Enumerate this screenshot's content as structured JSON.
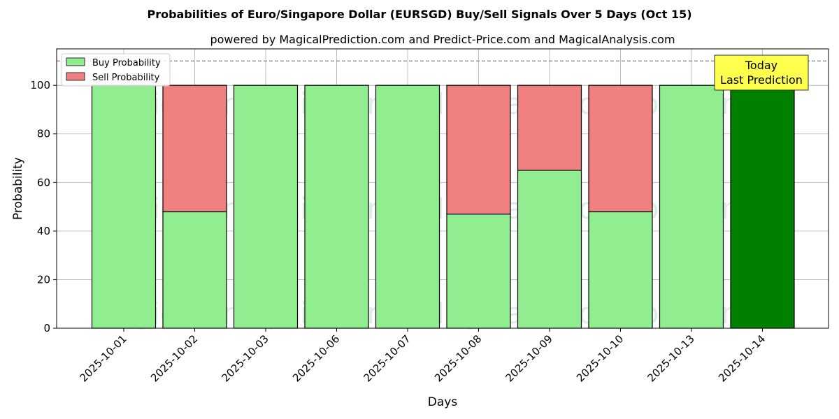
{
  "chart_data": {
    "type": "bar",
    "stacked": true,
    "title": "Probabilities of Euro/Singapore Dollar (EURSGD) Buy/Sell Signals Over 5 Days (Oct 15)",
    "subtitle": "powered by MagicalPrediction.com and Predict-Price.com and MagicalAnalysis.com",
    "xlabel": "Days",
    "ylabel": "Probability",
    "ylim": [
      0,
      115
    ],
    "yticks": [
      0,
      20,
      40,
      60,
      80,
      100
    ],
    "categories": [
      "2025-10-01",
      "2025-10-02",
      "2025-10-03",
      "2025-10-06",
      "2025-10-07",
      "2025-10-08",
      "2025-10-09",
      "2025-10-10",
      "2025-10-13",
      "2025-10-14"
    ],
    "series": [
      {
        "name": "Buy Probability",
        "color": "#90ee90",
        "values": [
          100,
          48,
          100,
          100,
          100,
          47,
          65,
          48,
          100,
          100
        ]
      },
      {
        "name": "Sell Probability",
        "color": "#f08080",
        "values": [
          0,
          52,
          0,
          0,
          0,
          53,
          35,
          52,
          0,
          0
        ]
      }
    ],
    "highlight": {
      "category_index": 9,
      "color": "#008000"
    },
    "reference_line": {
      "y": 110,
      "style": "dashed",
      "color": "#808080"
    },
    "annotation": {
      "lines": [
        "Today",
        "Last Prediction"
      ],
      "background": "#ffff4d"
    },
    "legend_placement": "top-left",
    "grid": true,
    "watermarks": [
      "MagicalAnalysis.com",
      "MagicalPrediction.com",
      "MagicalAnalysis.com",
      "MagicalPrediction.com",
      "MagicalAnalysis.com",
      "MagicalPrediction.com"
    ]
  }
}
